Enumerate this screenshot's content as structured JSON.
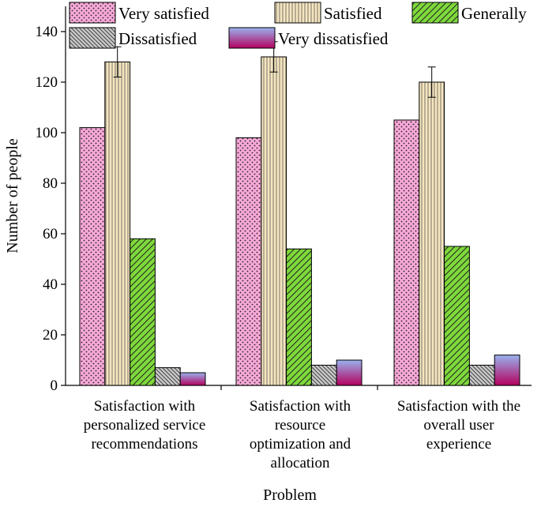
{
  "chart_data": {
    "type": "bar",
    "title": "",
    "xlabel": "Problem",
    "ylabel": "Number of people",
    "ylim": [
      0,
      150
    ],
    "yticks": [
      0,
      20,
      40,
      60,
      80,
      100,
      120,
      140
    ],
    "grid": false,
    "legend_position": "top",
    "categories": [
      [
        "Satisfaction with",
        "personalized service",
        "recommendations"
      ],
      [
        "Satisfaction with",
        "resource",
        "optimization and",
        "allocation"
      ],
      [
        "Satisfaction with the",
        "overall user",
        "experience"
      ]
    ],
    "series": [
      {
        "name": "Very satisfied",
        "values": [
          102,
          98,
          105
        ],
        "color": "#f7a8d8",
        "pattern": "dots"
      },
      {
        "name": "Satisfied",
        "values": [
          128,
          130,
          120
        ],
        "errors": [
          6,
          6,
          6
        ],
        "color": "#f6e6bf",
        "pattern": "vlines"
      },
      {
        "name": "Generally",
        "values": [
          58,
          54,
          55
        ],
        "color": "#7ed93b",
        "pattern": "diag"
      },
      {
        "name": "Dissatisfied",
        "values": [
          7,
          8,
          8
        ],
        "color": "#c8c8c8",
        "pattern": "diag-back"
      },
      {
        "name": "Very dissatisfied",
        "values": [
          5,
          10,
          12
        ],
        "color": "#9ab2ee",
        "pattern": "gradient"
      }
    ]
  }
}
